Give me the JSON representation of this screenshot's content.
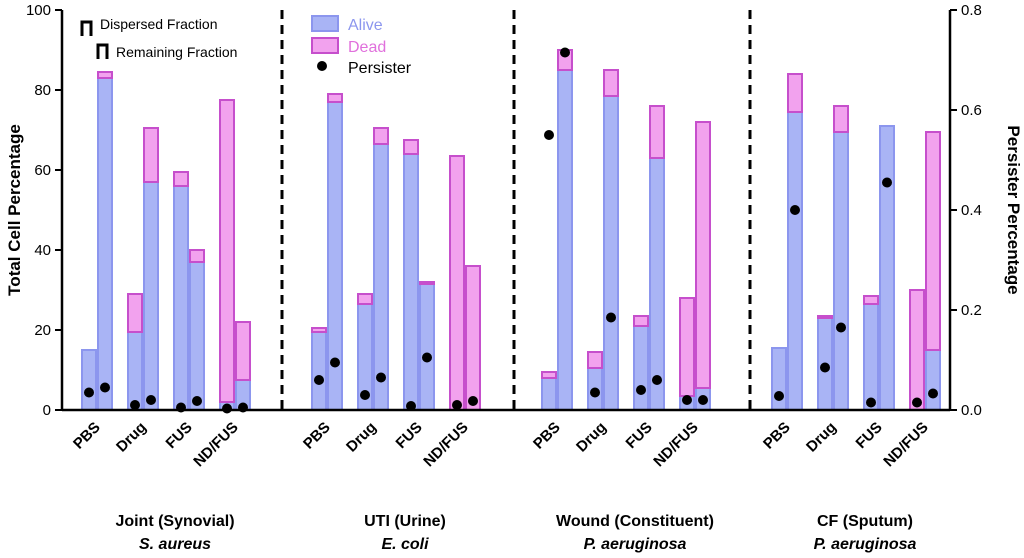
{
  "chart_data": {
    "type": "bar",
    "subtype": "stacked-bar-with-scatter-dual-axis",
    "ylabel_left": "Total Cell Percentage",
    "ylabel_right": "Persister Percentage",
    "ylim_left": [
      0,
      100
    ],
    "ylim_right": [
      0,
      0.8
    ],
    "yticks_left": [
      "0",
      "20",
      "40",
      "60",
      "80",
      "100"
    ],
    "yticks_right": [
      "0.0",
      "0.2",
      "0.4",
      "0.6",
      "0.8"
    ],
    "treatments": [
      "PBS",
      "Drug",
      "FUS",
      "ND/FUS"
    ],
    "legend": {
      "dispersed": "Dispersed Fraction",
      "remaining": "Remaining Fraction",
      "alive": "Alive",
      "dead": "Dead",
      "persister": "Persister"
    },
    "colors": {
      "alive_fill": "#a9b4f5",
      "alive_edge": "#8c96ee",
      "dead_fill": "#f2a2ee",
      "dead_edge": "#c64fcc",
      "persister": "#000000"
    },
    "groups": [
      {
        "title": "Joint (Synovial)",
        "organism": "S. aureus",
        "dispersed": {
          "alive": [
            15,
            19.5,
            56,
            2
          ],
          "dead": [
            0,
            9.5,
            3.5,
            75.5
          ],
          "persister": [
            0.035,
            0.01,
            0.005,
            0.003
          ]
        },
        "remaining": {
          "alive": [
            83,
            57,
            37,
            7.5
          ],
          "dead": [
            1.5,
            13.5,
            3,
            14.5
          ],
          "persister": [
            0.045,
            0.02,
            0.018,
            0.005
          ]
        }
      },
      {
        "title": "UTI (Urine)",
        "organism": "E. coli",
        "dispersed": {
          "alive": [
            19.5,
            26.5,
            64,
            0
          ],
          "dead": [
            1,
            2.5,
            3.5,
            63.5
          ],
          "persister": [
            0.06,
            0.03,
            0.008,
            0.01
          ]
        },
        "remaining": {
          "alive": [
            77,
            66.5,
            31.5,
            0
          ],
          "dead": [
            2,
            4,
            0.5,
            36
          ],
          "persister": [
            0.095,
            0.065,
            0.105,
            0.018
          ]
        }
      },
      {
        "title": "Wound (Constituent)",
        "organism": "P. aeruginosa",
        "dispersed": {
          "alive": [
            8,
            10.5,
            21,
            3.5
          ],
          "dead": [
            1.5,
            4,
            2.5,
            24.5
          ],
          "persister": [
            0.55,
            0.035,
            0.04,
            0.02
          ]
        },
        "remaining": {
          "alive": [
            85,
            78.5,
            63,
            5.5
          ],
          "dead": [
            5,
            6.5,
            13,
            66.5
          ],
          "persister": [
            0.715,
            0.185,
            0.06,
            0.02
          ]
        }
      },
      {
        "title": "CF (Sputum)",
        "organism": "P. aeruginosa",
        "dispersed": {
          "alive": [
            15.5,
            23,
            26.5,
            0
          ],
          "dead": [
            0,
            0.5,
            2,
            30
          ],
          "persister": [
            0.028,
            0.085,
            0.015,
            0.015
          ]
        },
        "remaining": {
          "alive": [
            74.5,
            69.5,
            71,
            15
          ],
          "dead": [
            9.5,
            6.5,
            0,
            54.5
          ],
          "persister": [
            0.4,
            0.165,
            0.455,
            0.033
          ]
        }
      }
    ]
  }
}
